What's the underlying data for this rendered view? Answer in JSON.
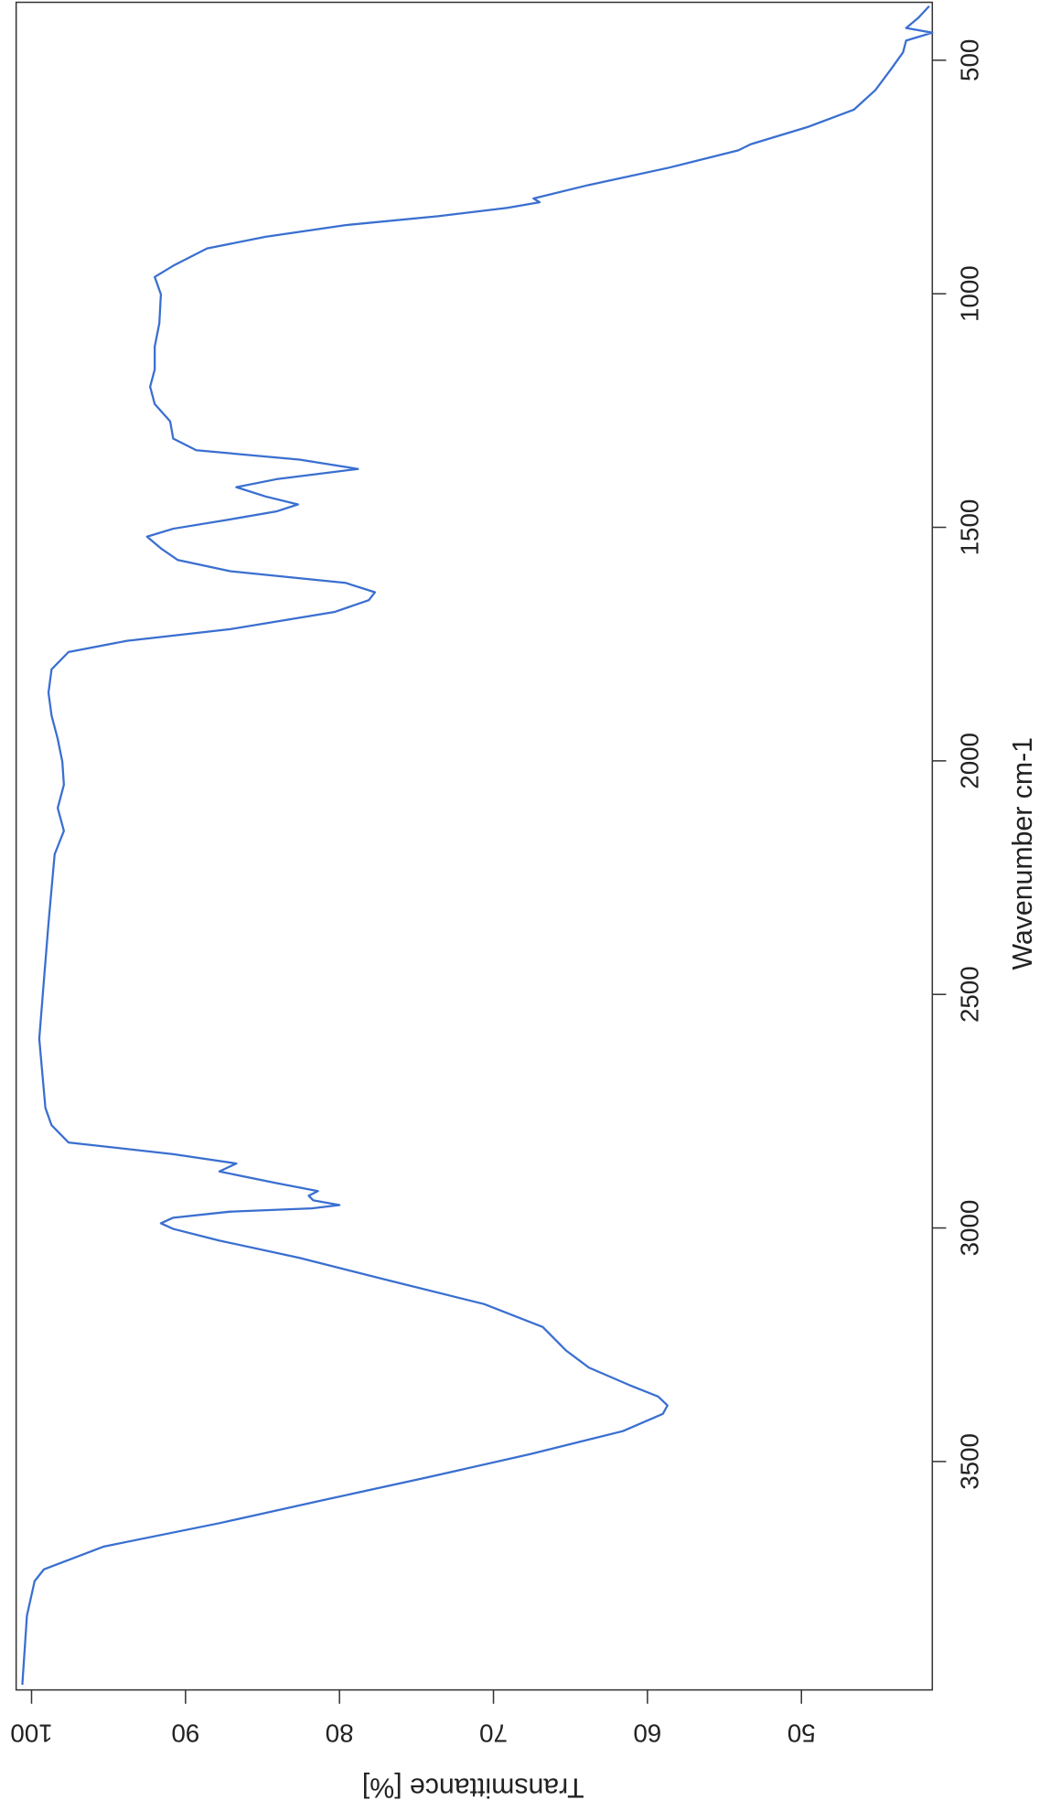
{
  "chart_data": {
    "type": "line",
    "x_label": "Wavenumber cm-1",
    "y_label": "Transmittance [%]",
    "xlim": [
      3989,
      376
    ],
    "ylim": [
      101,
      41.5
    ],
    "xticks": [
      500,
      1000,
      1500,
      2000,
      2500,
      3000,
      3500
    ],
    "yticks": [
      50,
      60,
      70,
      80,
      90,
      100
    ],
    "color": "#3a6fd0",
    "x": [
      3978,
      3830,
      3756,
      3731,
      3682,
      3632,
      3583,
      3534,
      3484,
      3435,
      3398,
      3380,
      3361,
      3336,
      3299,
      3262,
      3212,
      3163,
      3114,
      3064,
      3027,
      3002,
      2990,
      2978,
      2965,
      2958,
      2951,
      2941,
      2931,
      2921,
      2904,
      2879,
      2862,
      2842,
      2817,
      2780,
      2743,
      2595,
      2471,
      2348,
      2200,
      2150,
      2101,
      2051,
      2002,
      1953,
      1903,
      1854,
      1804,
      1767,
      1743,
      1718,
      1681,
      1656,
      1639,
      1619,
      1594,
      1570,
      1545,
      1520,
      1503,
      1483,
      1466,
      1451,
      1434,
      1414,
      1397,
      1375,
      1355,
      1335,
      1310,
      1273,
      1236,
      1199,
      1162,
      1113,
      1063,
      1001,
      964,
      940,
      903,
      878,
      853,
      834,
      816,
      804,
      796,
      767,
      730,
      693,
      680,
      643,
      606,
      564,
      520,
      483,
      458,
      441,
      431,
      409,
      384
    ],
    "y": [
      100.6,
      100.3,
      99.8,
      99.2,
      95.3,
      87.8,
      81.1,
      74.3,
      67.6,
      61.6,
      59.0,
      58.7,
      59.3,
      61.2,
      63.8,
      65.3,
      66.8,
      70.6,
      76.6,
      82.6,
      87.8,
      90.8,
      91.6,
      90.8,
      87.1,
      81.8,
      80.0,
      81.7,
      82.0,
      81.4,
      84.1,
      87.8,
      86.7,
      90.8,
      97.6,
      98.7,
      99.1,
      99.5,
      99.2,
      98.9,
      98.5,
      97.9,
      98.3,
      97.9,
      98.0,
      98.3,
      98.7,
      98.9,
      98.7,
      97.6,
      93.8,
      87.1,
      80.3,
      78.1,
      77.7,
      79.6,
      87.1,
      90.5,
      91.6,
      92.5,
      90.8,
      87.1,
      84.1,
      82.7,
      84.8,
      86.7,
      84.1,
      78.8,
      82.6,
      89.3,
      90.8,
      91.0,
      92.0,
      92.3,
      92.0,
      92.0,
      91.7,
      91.6,
      92.0,
      90.8,
      88.6,
      84.8,
      79.6,
      73.6,
      69.1,
      67.0,
      67.4,
      63.8,
      58.6,
      54.1,
      53.3,
      49.6,
      46.6,
      45.2,
      44.2,
      43.4,
      43.2,
      41.5,
      43.2,
      42.4,
      41.7
    ]
  }
}
